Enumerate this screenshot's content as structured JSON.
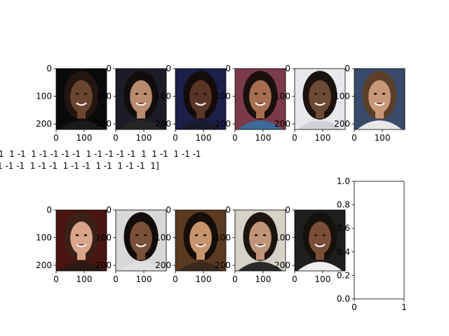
{
  "chart_data": {
    "type": "image_grid",
    "overlay_text": {
      "line1": "1  1 -1  1 -1 -1 -1 -1  1 -1 -1 -1 -1  1  1 -1  1 -1 -1",
      "line2": "1 -1 -1  1 -1 -1  1 -1 -1  1 -1  1 -1 -1  1]"
    },
    "image_panels": [
      {
        "image": "face-portrait",
        "bg": "#0a0a0a",
        "skin": "#6b4430",
        "hair": "#231510",
        "shirt": "#1a1a1a",
        "x_ticks": [
          "0",
          "100"
        ],
        "y_ticks": [
          "0",
          "100",
          "200"
        ]
      },
      {
        "image": "face-portrait",
        "bg": "#1c1c26",
        "skin": "#b98a6c",
        "hair": "#120d0c",
        "shirt": "#262626",
        "x_ticks": [
          "0",
          "100"
        ],
        "y_ticks": [
          "0",
          "100",
          "200"
        ]
      },
      {
        "image": "face-portrait",
        "bg": "#1b1f4a",
        "skin": "#5a3526",
        "hair": "#140c0a",
        "shirt": "#1a1a2a",
        "x_ticks": [
          "0",
          "100"
        ],
        "y_ticks": [
          "0",
          "100",
          "200"
        ]
      },
      {
        "image": "face-portrait",
        "bg": "#7a3a4a",
        "skin": "#a56e50",
        "hair": "#1a0f0b",
        "shirt": "#3d6a9a",
        "x_ticks": [
          "0",
          "100"
        ],
        "y_ticks": [
          "0",
          "100",
          "200"
        ]
      },
      {
        "image": "face-portrait",
        "bg": "#e6e8ec",
        "skin": "#6e4a34",
        "hair": "#1a120e",
        "shirt": "#d0d2d6",
        "x_ticks": [
          "0",
          "100"
        ],
        "y_ticks": [
          "0",
          "100",
          "200"
        ]
      },
      {
        "image": "face-portrait",
        "bg": "#3a4a6a",
        "skin": "#c99878",
        "hair": "#5a4028",
        "shirt": "#e8e8e8",
        "x_ticks": [
          "0",
          "100"
        ],
        "y_ticks": [
          "0",
          "100",
          "200"
        ]
      },
      {
        "image": "face-portrait",
        "bg": "#4a1410",
        "skin": "#d8a48a",
        "hair": "#3a2016",
        "shirt": "#2a1a14",
        "x_ticks": [
          "0",
          "100"
        ],
        "y_ticks": [
          "0",
          "100",
          "200"
        ]
      },
      {
        "image": "face-portrait",
        "bg": "#d8d8d8",
        "skin": "#7a5038",
        "hair": "#120c0a",
        "shirt": "#e0e0e0",
        "x_ticks": [
          "0",
          "100"
        ],
        "y_ticks": [
          "0",
          "100",
          "200"
        ]
      },
      {
        "image": "face-portrait",
        "bg": "#5a3a20",
        "skin": "#c8946c",
        "hair": "#150d08",
        "shirt": "#3a2a20",
        "x_ticks": [
          "0",
          "100"
        ],
        "y_ticks": [
          "0",
          "100",
          "200"
        ]
      },
      {
        "image": "face-portrait",
        "bg": "#d6d2c8",
        "skin": "#c09478",
        "hair": "#1c140e",
        "shirt": "#2a2a2a",
        "x_ticks": [
          "0",
          "100"
        ],
        "y_ticks": [
          "0",
          "100",
          "200"
        ]
      },
      {
        "image": "face-portrait",
        "bg": "#1e1e1e",
        "skin": "#7a4e36",
        "hair": "#14100c",
        "shirt": "#eeeeee",
        "x_ticks": [
          "0",
          "100"
        ],
        "y_ticks": [
          "0",
          "100",
          "200"
        ]
      }
    ],
    "empty_axes": {
      "xlim": [
        0,
        1
      ],
      "ylim": [
        0,
        1
      ],
      "x_ticks": [
        "0",
        "1"
      ],
      "y_ticks": [
        "0.0",
        "0.2",
        "0.4",
        "0.6",
        "0.8",
        "1.0"
      ]
    }
  }
}
